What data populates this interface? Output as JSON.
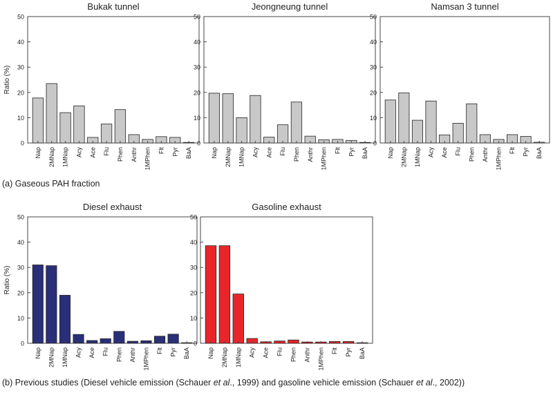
{
  "captions": {
    "a": "(a) Gaseous PAH fraction",
    "b_prefix": "(b) Previous studies (Diesel vehicle emission (Schauer ",
    "b_etal1": "et al",
    "b_mid": "., 1999) and gasoline vehicle emission (Schauer ",
    "b_etal2": "et al",
    "b_suffix": "., 2002))"
  },
  "colors": {
    "gray": "#c8c8c8",
    "navy": "#2a2f7a",
    "red": "#e8262a",
    "edge": "#222222",
    "frame": "#444444"
  },
  "chart_data": [
    {
      "type": "bar",
      "title": "Bukak tunnel",
      "ylabel": "Ratio (%)",
      "ylim": [
        0,
        50
      ],
      "yticks": [
        0,
        10,
        20,
        30,
        40,
        50
      ],
      "categories": [
        "Nap",
        "2MNap",
        "1MNap",
        "Acy",
        "Ace",
        "Flu",
        "Phen",
        "Anthr",
        "1MPhen",
        "Flt",
        "Pyr",
        "BaA"
      ],
      "values": [
        17.8,
        23.5,
        12.0,
        14.7,
        2.2,
        7.5,
        13.2,
        3.3,
        1.4,
        2.5,
        2.2,
        0.1
      ],
      "color": "#c8c8c8"
    },
    {
      "type": "bar",
      "title": "Jeongneung tunnel",
      "ylabel": "",
      "ylim": [
        0,
        50
      ],
      "yticks": [
        0,
        10,
        20,
        30,
        40,
        50
      ],
      "categories": [
        "Nap",
        "2MNap",
        "1MNap",
        "Acy",
        "Ace",
        "Flu",
        "Phen",
        "Anthr",
        "1MPhen",
        "Flt",
        "Pyr",
        "BaA"
      ],
      "values": [
        19.7,
        19.5,
        10.0,
        18.8,
        2.3,
        7.2,
        16.2,
        2.7,
        1.3,
        1.4,
        1.0,
        0.1
      ],
      "color": "#c8c8c8"
    },
    {
      "type": "bar",
      "title": "Namsan 3 tunnel",
      "ylabel": "",
      "ylim": [
        0,
        50
      ],
      "yticks": [
        0,
        10,
        20,
        30,
        40,
        50
      ],
      "categories": [
        "Nap",
        "2MNap",
        "1MNap",
        "Acy",
        "Ace",
        "Flu",
        "Phen",
        "Anthr",
        "1MPhen",
        "Flt",
        "Pyr",
        "BaA"
      ],
      "values": [
        17.0,
        19.8,
        9.0,
        16.6,
        3.2,
        7.8,
        15.5,
        3.3,
        1.4,
        3.3,
        2.6,
        0.3
      ],
      "color": "#c8c8c8"
    },
    {
      "type": "bar",
      "title": "Diesel exhaust",
      "ylabel": "Ratio (%)",
      "ylim": [
        0,
        50
      ],
      "yticks": [
        0,
        10,
        20,
        30,
        40,
        50
      ],
      "categories": [
        "Nap",
        "2MNap",
        "1MNap",
        "Acy",
        "Ace",
        "Flu",
        "Phen",
        "Anthr",
        "1MPhen",
        "Flt",
        "Pyr",
        "BaA"
      ],
      "values": [
        31.0,
        30.7,
        19.0,
        3.5,
        1.1,
        1.8,
        4.7,
        0.8,
        1.0,
        2.8,
        3.6,
        0.1
      ],
      "color": "#2a2f7a"
    },
    {
      "type": "bar",
      "title": "Gasoline exhaust",
      "ylabel": "",
      "ylim": [
        0,
        50
      ],
      "yticks": [
        0,
        10,
        20,
        30,
        40,
        50
      ],
      "categories": [
        "Nap",
        "2MNap",
        "1MNap",
        "Acy",
        "Ace",
        "Flu",
        "Phen",
        "Anthr",
        "1MPhen",
        "Flt",
        "Pyr",
        "BaA"
      ],
      "values": [
        38.6,
        38.6,
        19.5,
        1.9,
        0.6,
        0.9,
        1.3,
        0.5,
        0.5,
        0.7,
        0.7,
        0.1
      ],
      "color": "#e8262a"
    }
  ]
}
